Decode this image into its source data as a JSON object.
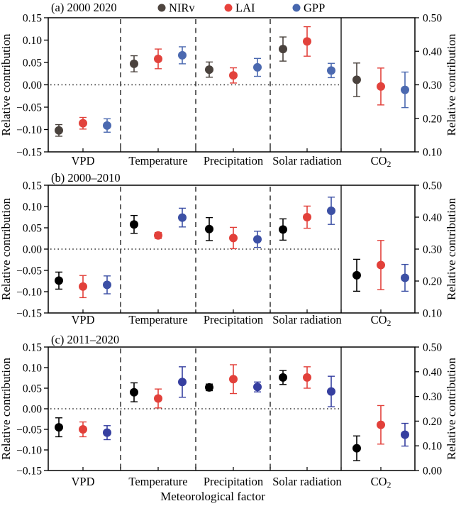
{
  "figure": {
    "x_axis_title": "Meteorological factor",
    "y_axis_title_left": "Relative contribution",
    "y_axis_title_right": "Relative contribution",
    "legend": {
      "entries": [
        {
          "label": "NIRv",
          "color": "#4e453f"
        },
        {
          "label": "LAI",
          "color": "#e8423c"
        },
        {
          "label": "GPP",
          "color": "#4767ae"
        }
      ]
    }
  },
  "chart_data": [
    {
      "type": "scatter",
      "panel": "a",
      "title": "(a) 2000 2020",
      "left_axis": {
        "title": "Relative contribution",
        "min": -0.15,
        "max": 0.15,
        "ticks": [
          0.15,
          0.1,
          0.05,
          0.0,
          -0.05,
          -0.1,
          -0.15
        ]
      },
      "right_axis": {
        "title": "Relative contribution",
        "min": 0.1,
        "max": 0.5,
        "ticks": [
          0.5,
          0.4,
          0.3,
          0.2,
          0.1
        ]
      },
      "categories": [
        "VPD",
        "Temperature",
        "Precipitation",
        "Solar radiation",
        "CO2"
      ],
      "co2_axis": "right",
      "zero_line": true,
      "series": [
        {
          "name": "NIRv",
          "color": "#4a423d",
          "values": [
            -0.102,
            0.047,
            0.034,
            0.08,
            0.315
          ],
          "errors": [
            0.013,
            0.018,
            0.017,
            0.027,
            0.05
          ]
        },
        {
          "name": "LAI",
          "color": "#e2423c",
          "values": [
            -0.086,
            0.058,
            0.021,
            0.097,
            0.295
          ],
          "errors": [
            0.013,
            0.022,
            0.017,
            0.033,
            0.055
          ]
        },
        {
          "name": "GPP",
          "color": "#4b69b0",
          "values": [
            -0.091,
            0.066,
            0.039,
            0.032,
            0.285
          ],
          "errors": [
            0.015,
            0.019,
            0.02,
            0.016,
            0.053
          ]
        }
      ]
    },
    {
      "type": "scatter",
      "panel": "b",
      "title": "(b) 2000–2010",
      "left_axis": {
        "title": "Relative contribution",
        "min": -0.15,
        "max": 0.15,
        "ticks": [
          0.15,
          0.1,
          0.05,
          0.0,
          -0.05,
          -0.1,
          -0.15
        ]
      },
      "right_axis": {
        "title": "Relative contribution",
        "min": 0.1,
        "max": 0.5,
        "ticks": [
          0.5,
          0.4,
          0.3,
          0.2,
          0.1
        ]
      },
      "categories": [
        "VPD",
        "Temperature",
        "Precipitation",
        "Solar radiation",
        "CO2"
      ],
      "co2_axis": "right",
      "zero_line": true,
      "series": [
        {
          "name": "NIRv",
          "color": "#000000",
          "values": [
            -0.074,
            0.058,
            0.047,
            0.046,
            0.218
          ],
          "errors": [
            0.02,
            0.021,
            0.027,
            0.025,
            0.05
          ]
        },
        {
          "name": "LAI",
          "color": "#e2403a",
          "values": [
            -0.088,
            0.032,
            0.026,
            0.075,
            0.25
          ],
          "errors": [
            0.026,
            0.007,
            0.025,
            0.026,
            0.077
          ]
        },
        {
          "name": "GPP",
          "color": "#3c50a5",
          "values": [
            -0.084,
            0.074,
            0.023,
            0.09,
            0.21
          ],
          "errors": [
            0.021,
            0.022,
            0.019,
            0.032,
            0.042
          ]
        }
      ]
    },
    {
      "type": "scatter",
      "panel": "c",
      "title": "(c) 2011–2020",
      "left_axis": {
        "title": "Relative contribution",
        "min": -0.15,
        "max": 0.15,
        "ticks": [
          0.15,
          0.1,
          0.05,
          0.0,
          -0.05,
          -0.1,
          -0.15
        ]
      },
      "right_axis": {
        "title": "Relative contribution",
        "min": 0.0,
        "max": 0.5,
        "ticks": [
          0.5,
          0.4,
          0.3,
          0.2,
          0.1,
          0.0
        ]
      },
      "categories": [
        "VPD",
        "Temperature",
        "Precipitation",
        "Solar radiation",
        "CO2"
      ],
      "co2_axis": "right",
      "zero_line": true,
      "series": [
        {
          "name": "NIRv",
          "color": "#000000",
          "values": [
            -0.045,
            0.04,
            0.052,
            0.076,
            0.09
          ],
          "errors": [
            0.023,
            0.023,
            0.008,
            0.017,
            0.05
          ]
        },
        {
          "name": "LAI",
          "color": "#e2403a",
          "values": [
            -0.05,
            0.025,
            0.072,
            0.076,
            0.185
          ],
          "errors": [
            0.018,
            0.023,
            0.035,
            0.026,
            0.078
          ]
        },
        {
          "name": "GPP",
          "color": "#363fa0",
          "values": [
            -0.058,
            0.065,
            0.053,
            0.042,
            0.145
          ],
          "errors": [
            0.017,
            0.037,
            0.012,
            0.037,
            0.046
          ]
        }
      ]
    }
  ]
}
